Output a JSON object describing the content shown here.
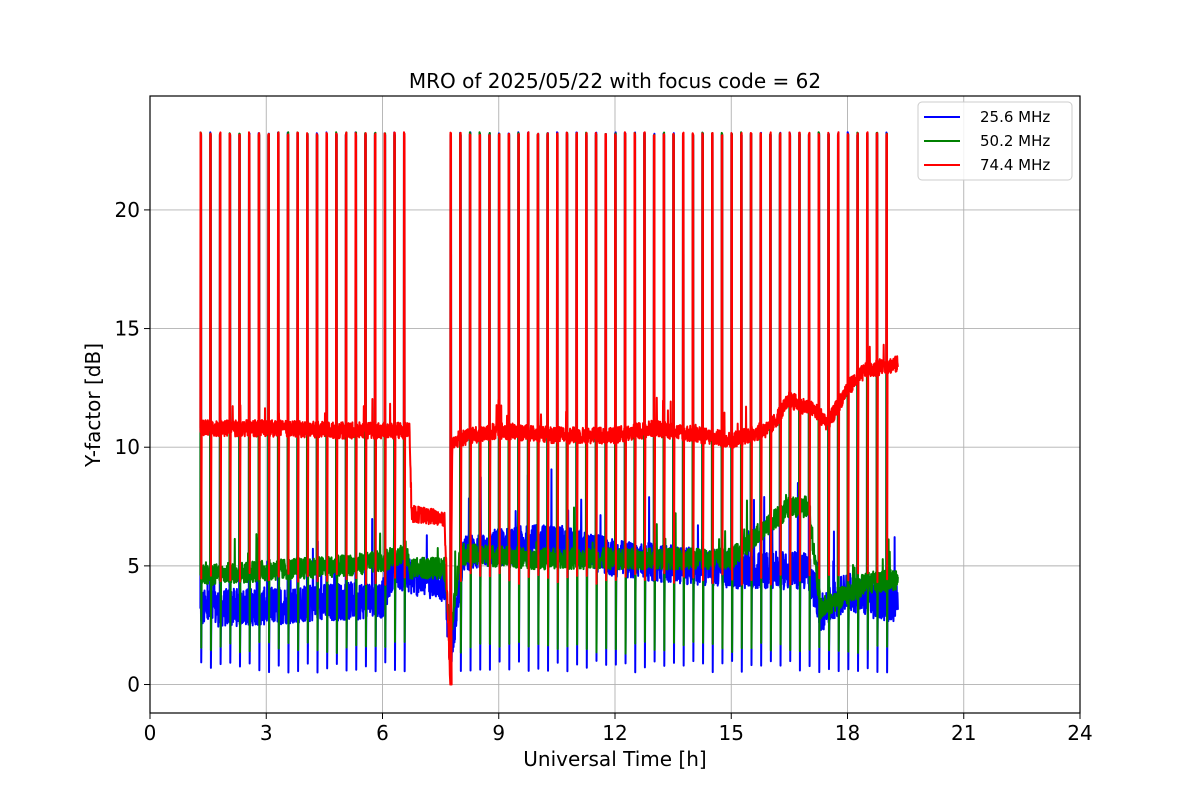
{
  "chart_data": {
    "type": "line",
    "title": "MRO of 2025/05/22 with focus code = 62",
    "xlabel": "Universal Time [h]",
    "ylabel": "Y-factor [dB]",
    "xlim": [
      0,
      24
    ],
    "ylim": [
      -1.2,
      24.8
    ],
    "xticks": [
      0,
      3,
      6,
      9,
      12,
      15,
      18,
      21,
      24
    ],
    "yticks": [
      0,
      5,
      10,
      15,
      20
    ],
    "grid": true,
    "legend_position": "top-right",
    "series": [
      {
        "name": "25.6 MHz",
        "color": "#0000ff",
        "baseline": [
          [
            1.3,
            3.2
          ],
          [
            3.0,
            3.3
          ],
          [
            5.0,
            3.5
          ],
          [
            6.0,
            3.6
          ],
          [
            6.3,
            5.0
          ],
          [
            6.6,
            4.6
          ],
          [
            7.6,
            4.3
          ],
          [
            7.75,
            1.2
          ],
          [
            8.1,
            5.5
          ],
          [
            9.0,
            5.8
          ],
          [
            10.5,
            6.0
          ],
          [
            12.0,
            5.3
          ],
          [
            14.0,
            5.0
          ],
          [
            15.5,
            4.8
          ],
          [
            17.0,
            4.8
          ],
          [
            17.3,
            3.0
          ],
          [
            18.0,
            4.0
          ],
          [
            18.5,
            3.6
          ],
          [
            19.3,
            3.4
          ]
        ],
        "noise": 0.8,
        "pulse_peak": 23.2,
        "pulse_min": 0.5
      },
      {
        "name": "50.2 MHz",
        "color": "#008000",
        "baseline": [
          [
            1.3,
            4.6
          ],
          [
            3.0,
            4.8
          ],
          [
            5.0,
            5.0
          ],
          [
            6.0,
            5.2
          ],
          [
            6.6,
            5.6
          ],
          [
            6.7,
            4.9
          ],
          [
            7.6,
            4.9
          ],
          [
            7.75,
            2.0
          ],
          [
            8.0,
            5.5
          ],
          [
            10.0,
            5.3
          ],
          [
            12.0,
            5.3
          ],
          [
            15.0,
            5.3
          ],
          [
            15.8,
            6.5
          ],
          [
            16.5,
            7.5
          ],
          [
            17.0,
            7.5
          ],
          [
            17.3,
            3.2
          ],
          [
            18.0,
            3.8
          ],
          [
            18.5,
            4.3
          ],
          [
            19.3,
            4.4
          ]
        ],
        "noise": 0.45,
        "pulse_peak": 23.2,
        "pulse_min": 1.3
      },
      {
        "name": "74.4 MHz",
        "color": "#ff0000",
        "baseline": [
          [
            1.3,
            10.8
          ],
          [
            3.0,
            10.8
          ],
          [
            5.0,
            10.7
          ],
          [
            6.7,
            10.7
          ],
          [
            6.75,
            7.2
          ],
          [
            7.6,
            7.0
          ],
          [
            7.75,
            0.0
          ],
          [
            7.8,
            10.3
          ],
          [
            9.0,
            10.7
          ],
          [
            10.5,
            10.5
          ],
          [
            12.0,
            10.5
          ],
          [
            13.0,
            10.8
          ],
          [
            15.0,
            10.3
          ],
          [
            16.0,
            10.8
          ],
          [
            16.5,
            12.0
          ],
          [
            17.2,
            11.5
          ],
          [
            17.5,
            11.0
          ],
          [
            18.0,
            12.5
          ],
          [
            18.5,
            13.3
          ],
          [
            19.3,
            13.5
          ]
        ],
        "noise": 0.35,
        "pulse_peak": 23.2,
        "pulse_min": 4.2
      }
    ],
    "pulse_period_h": 0.25,
    "segments": [
      [
        1.3,
        6.6
      ],
      [
        7.75,
        19.0
      ]
    ]
  }
}
